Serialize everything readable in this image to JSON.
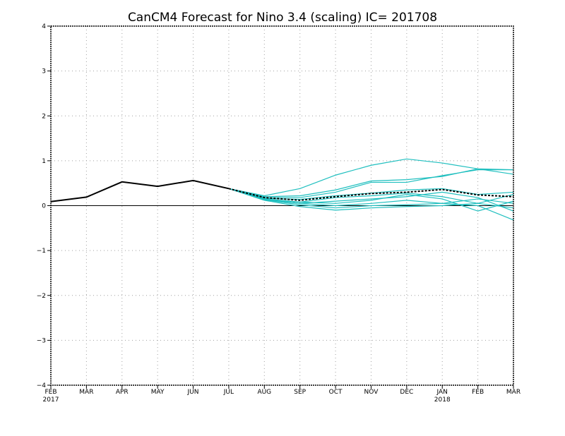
{
  "chart_data": {
    "type": "line",
    "title": "CanCM4 Forecast for Nino 3.4 (scaling)  IC= 201708",
    "x_labels": [
      "FEB",
      "MAR",
      "APR",
      "MAY",
      "JUN",
      "JUL",
      "AUG",
      "SEP",
      "OCT",
      "NOV",
      "DEC",
      "JAN",
      "FEB",
      "MAR"
    ],
    "year_labels": [
      {
        "index": 0,
        "label": "2017"
      },
      {
        "index": 11,
        "label": "2018"
      }
    ],
    "ylim": [
      -4,
      4
    ],
    "y_ticks": [
      "4",
      "3",
      "2",
      "1",
      "0",
      "−1",
      "−2",
      "−3",
      "−4"
    ],
    "grid": true,
    "zero_line": true,
    "colors": {
      "observed": "#000000",
      "ensemble_mean": "#000000",
      "members": "#1fbfbf",
      "grid": "#a0a0a0"
    },
    "observed": {
      "x_index": [
        0,
        1,
        2,
        3,
        4,
        5
      ],
      "values": [
        0.09,
        0.19,
        0.53,
        0.43,
        0.56,
        0.38
      ]
    },
    "ensemble_mean": {
      "x_index": [
        5,
        6,
        7,
        8,
        9,
        10,
        11,
        12,
        13
      ],
      "values": [
        0.38,
        0.18,
        0.12,
        0.2,
        0.27,
        0.3,
        0.36,
        0.24,
        0.2
      ]
    },
    "members": [
      {
        "x_index": [
          5,
          6,
          7,
          8,
          9,
          10,
          11,
          12,
          13
        ],
        "values": [
          0.38,
          0.22,
          0.38,
          0.68,
          0.9,
          1.04,
          0.95,
          0.82,
          0.8
        ]
      },
      {
        "x_index": [
          5,
          6,
          7,
          8,
          9,
          10,
          11,
          12,
          13
        ],
        "values": [
          0.38,
          0.2,
          0.22,
          0.35,
          0.55,
          0.58,
          0.65,
          0.82,
          0.7
        ]
      },
      {
        "x_index": [
          5,
          6,
          7,
          8,
          9,
          10,
          11,
          12,
          13
        ],
        "values": [
          0.38,
          0.18,
          0.18,
          0.3,
          0.52,
          0.52,
          0.67,
          0.8,
          0.8
        ]
      },
      {
        "x_index": [
          5,
          6,
          7,
          8,
          9,
          10,
          11,
          12,
          13
        ],
        "values": [
          0.38,
          0.16,
          0.14,
          0.22,
          0.28,
          0.35,
          0.38,
          0.25,
          0.3
        ]
      },
      {
        "x_index": [
          5,
          6,
          7,
          8,
          9,
          10,
          11,
          12,
          13
        ],
        "values": [
          0.38,
          0.15,
          0.08,
          0.18,
          0.22,
          0.28,
          0.2,
          0.05,
          0.25
        ]
      },
      {
        "x_index": [
          5,
          6,
          7,
          8,
          9,
          10,
          11,
          12,
          13
        ],
        "values": [
          0.38,
          0.15,
          0.05,
          0.1,
          0.15,
          0.2,
          0.3,
          0.18,
          -0.12
        ]
      },
      {
        "x_index": [
          5,
          6,
          7,
          8,
          9,
          10,
          11,
          12,
          13
        ],
        "values": [
          0.38,
          0.14,
          0.05,
          0.0,
          0.05,
          0.12,
          0.05,
          0.15,
          0.05
        ]
      },
      {
        "x_index": [
          5,
          6,
          7,
          8,
          9,
          10,
          11,
          12,
          13
        ],
        "values": [
          0.38,
          0.13,
          0.02,
          -0.05,
          0.0,
          0.02,
          0.05,
          0.0,
          -0.32
        ]
      },
      {
        "x_index": [
          5,
          6,
          7,
          8,
          9,
          10,
          11,
          12,
          13
        ],
        "values": [
          0.38,
          0.12,
          -0.02,
          -0.1,
          -0.05,
          -0.02,
          0.0,
          0.05,
          -0.05
        ]
      },
      {
        "x_index": [
          5,
          6,
          7,
          8,
          9,
          10,
          11,
          12,
          13
        ],
        "values": [
          0.38,
          0.14,
          0.08,
          0.05,
          0.12,
          0.25,
          0.15,
          -0.12,
          0.1
        ]
      }
    ]
  }
}
